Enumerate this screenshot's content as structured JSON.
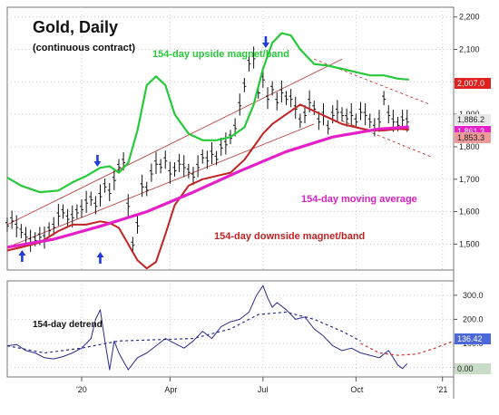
{
  "chart_data": [
    {
      "type": "line",
      "title": "Gold, Daily",
      "subtitle": "(continuous contract)",
      "x_ticks": [
        "'20",
        "Apr",
        "Jul",
        "Oct",
        "'21"
      ],
      "y_ticks": [
        1500,
        1600,
        1700,
        1800,
        1900,
        2000,
        2100,
        2200
      ],
      "y_tick_labels": [
        "1,500",
        "1,600",
        "1,700",
        "1,800",
        "1,900",
        "2,000",
        "2,100",
        "2,200"
      ],
      "ylim": [
        1420,
        2230
      ],
      "grid": true,
      "annotations": {
        "upside": "154-day upside magnet/band",
        "moving_average": "154-day moving average",
        "downside": "154-day downside magnet/band"
      },
      "price_badges": [
        {
          "label": "2,007.0",
          "value": 2007.0,
          "color": "#e0201f"
        },
        {
          "label": "1,886.2",
          "value": 1886.2,
          "color": "#e8e8e8"
        },
        {
          "label": "1,861.3",
          "value": 1861.3,
          "color": "#e620c8"
        },
        {
          "label": "1,853.3",
          "value": 1853.3,
          "color": "#ee9a9a"
        }
      ],
      "series": [
        {
          "color": "#111111",
          "x_index": [
            0,
            5,
            10,
            15,
            20,
            25,
            30,
            35,
            40,
            45,
            50,
            55,
            60,
            65,
            70,
            75,
            80,
            85,
            90,
            95,
            100,
            105,
            110,
            115,
            120,
            125,
            130,
            135,
            140,
            145,
            150,
            155,
            160,
            165,
            170,
            175,
            180,
            185,
            190,
            195,
            200,
            205,
            210,
            215,
            220,
            225,
            230,
            235,
            240,
            245,
            250,
            255,
            260,
            265,
            270,
            275,
            280,
            285,
            290,
            295,
            300,
            305,
            310,
            315,
            320,
            325,
            330,
            335,
            340,
            345,
            350,
            355,
            360,
            365,
            370,
            375,
            380,
            385,
            390,
            395,
            400,
            405,
            410,
            415,
            420,
            425,
            430
          ],
          "values": [
            1560,
            1575,
            1555,
            1540,
            1525,
            1510,
            1515,
            1525,
            1520,
            1545,
            1555,
            1590,
            1600,
            1580,
            1585,
            1600,
            1610,
            1630,
            1640,
            1620,
            1650,
            1680,
            1660,
            1700,
            1740,
            1755,
            1620,
            1500,
            1560,
            1680,
            1670,
            1720,
            1750,
            1740,
            1760,
            1720,
            1730,
            1750,
            1740,
            1725,
            1710,
            1740,
            1770,
            1760,
            1780,
            1765,
            1800,
            1810,
            1830,
            1860,
            1930,
            1990,
            2060,
            2075,
            1970,
            2010,
            1950,
            1980,
            1940,
            1970,
            1950,
            1950,
            1920,
            1880,
            1900,
            1940,
            1920,
            1880,
            1900,
            1860,
            1900,
            1910,
            1900,
            1890,
            1900,
            1880,
            1910,
            1900,
            1880,
            1860,
            1880,
            1950,
            1900,
            1880,
            1870,
            1886,
            1880
          ]
        },
        {
          "color": "#27c93a",
          "x_index": [
            0,
            15,
            35,
            55,
            70,
            85,
            100,
            110,
            120,
            130,
            140,
            150,
            160,
            170,
            180,
            195,
            210,
            225,
            240,
            255,
            265,
            275,
            285,
            295,
            305,
            315,
            330,
            345,
            360,
            375,
            390,
            405,
            420,
            432
          ],
          "values": [
            1705,
            1680,
            1660,
            1665,
            1690,
            1710,
            1735,
            1740,
            1720,
            1750,
            1850,
            1990,
            2017,
            1990,
            1900,
            1840,
            1820,
            1820,
            1830,
            1860,
            1930,
            2040,
            2120,
            2150,
            2143,
            2100,
            2055,
            2050,
            2040,
            2030,
            2020,
            2020,
            2010,
            2007
          ]
        },
        {
          "color": "#c22222",
          "x_index": [
            0,
            15,
            35,
            55,
            70,
            85,
            100,
            110,
            120,
            130,
            140,
            150,
            160,
            170,
            180,
            195,
            210,
            225,
            240,
            255,
            265,
            275,
            285,
            295,
            305,
            315,
            330,
            345,
            360,
            375,
            390,
            405,
            420,
            432
          ],
          "values": [
            1480,
            1490,
            1505,
            1540,
            1560,
            1560,
            1570,
            1565,
            1550,
            1500,
            1450,
            1425,
            1445,
            1530,
            1620,
            1680,
            1700,
            1710,
            1720,
            1760,
            1800,
            1840,
            1870,
            1890,
            1910,
            1930,
            1910,
            1890,
            1870,
            1860,
            1850,
            1850,
            1855,
            1853
          ]
        },
        {
          "color": "#e620c8",
          "x_index": [
            0,
            50,
            100,
            150,
            200,
            250,
            300,
            350,
            400,
            432
          ],
          "values": [
            1490,
            1515,
            1555,
            1600,
            1660,
            1725,
            1785,
            1830,
            1855,
            1861
          ]
        }
      ],
      "arrows_up_x": [
        16,
        100
      ],
      "arrows_down_x": [
        97,
        278
      ]
    },
    {
      "type": "line",
      "title": "154-day detrend",
      "x_ticks": [
        "'20",
        "Apr",
        "Jul",
        "Oct",
        "'21"
      ],
      "y_ticks": [
        0,
        100,
        200,
        300
      ],
      "y_tick_labels": [
        "0.00",
        "100.0",
        "200.0",
        "300.0"
      ],
      "ylim": [
        -40,
        360
      ],
      "grid": true,
      "price_badges": [
        {
          "label": "136.42",
          "value": 136.42,
          "color": "#4a68d8"
        },
        {
          "label": "0.00",
          "value": 0,
          "color": "#c8dcc8"
        }
      ],
      "series": [
        {
          "color": "#2a2a8c",
          "x_index": [
            0,
            10,
            20,
            30,
            40,
            50,
            60,
            70,
            80,
            90,
            95,
            100,
            105,
            110,
            115,
            120,
            130,
            140,
            150,
            160,
            170,
            180,
            190,
            200,
            210,
            220,
            230,
            240,
            250,
            260,
            268,
            275,
            280,
            285,
            290,
            300,
            310,
            320,
            330,
            340,
            350,
            360,
            370,
            380,
            390,
            400,
            410,
            420,
            425,
            430
          ],
          "values": [
            90,
            95,
            70,
            60,
            40,
            35,
            45,
            60,
            80,
            120,
            200,
            240,
            110,
            -10,
            110,
            60,
            -10,
            40,
            60,
            90,
            120,
            100,
            80,
            110,
            150,
            120,
            170,
            190,
            200,
            230,
            300,
            340,
            290,
            250,
            270,
            240,
            200,
            210,
            160,
            130,
            90,
            70,
            80,
            60,
            50,
            40,
            70,
            10,
            -5,
            15
          ]
        },
        {
          "color": "#2a2a8c",
          "dashed": true,
          "x_index": [
            0,
            40,
            80,
            120,
            160,
            200,
            240,
            270,
            300,
            330,
            360,
            380
          ],
          "values": [
            90,
            60,
            80,
            110,
            115,
            120,
            160,
            220,
            230,
            200,
            150,
            110
          ]
        },
        {
          "color": "#cc3333",
          "dashed": true,
          "x_index": [
            380,
            400,
            420,
            440,
            460,
            480
          ],
          "values": [
            100,
            60,
            50,
            55,
            80,
            110
          ]
        }
      ]
    }
  ]
}
